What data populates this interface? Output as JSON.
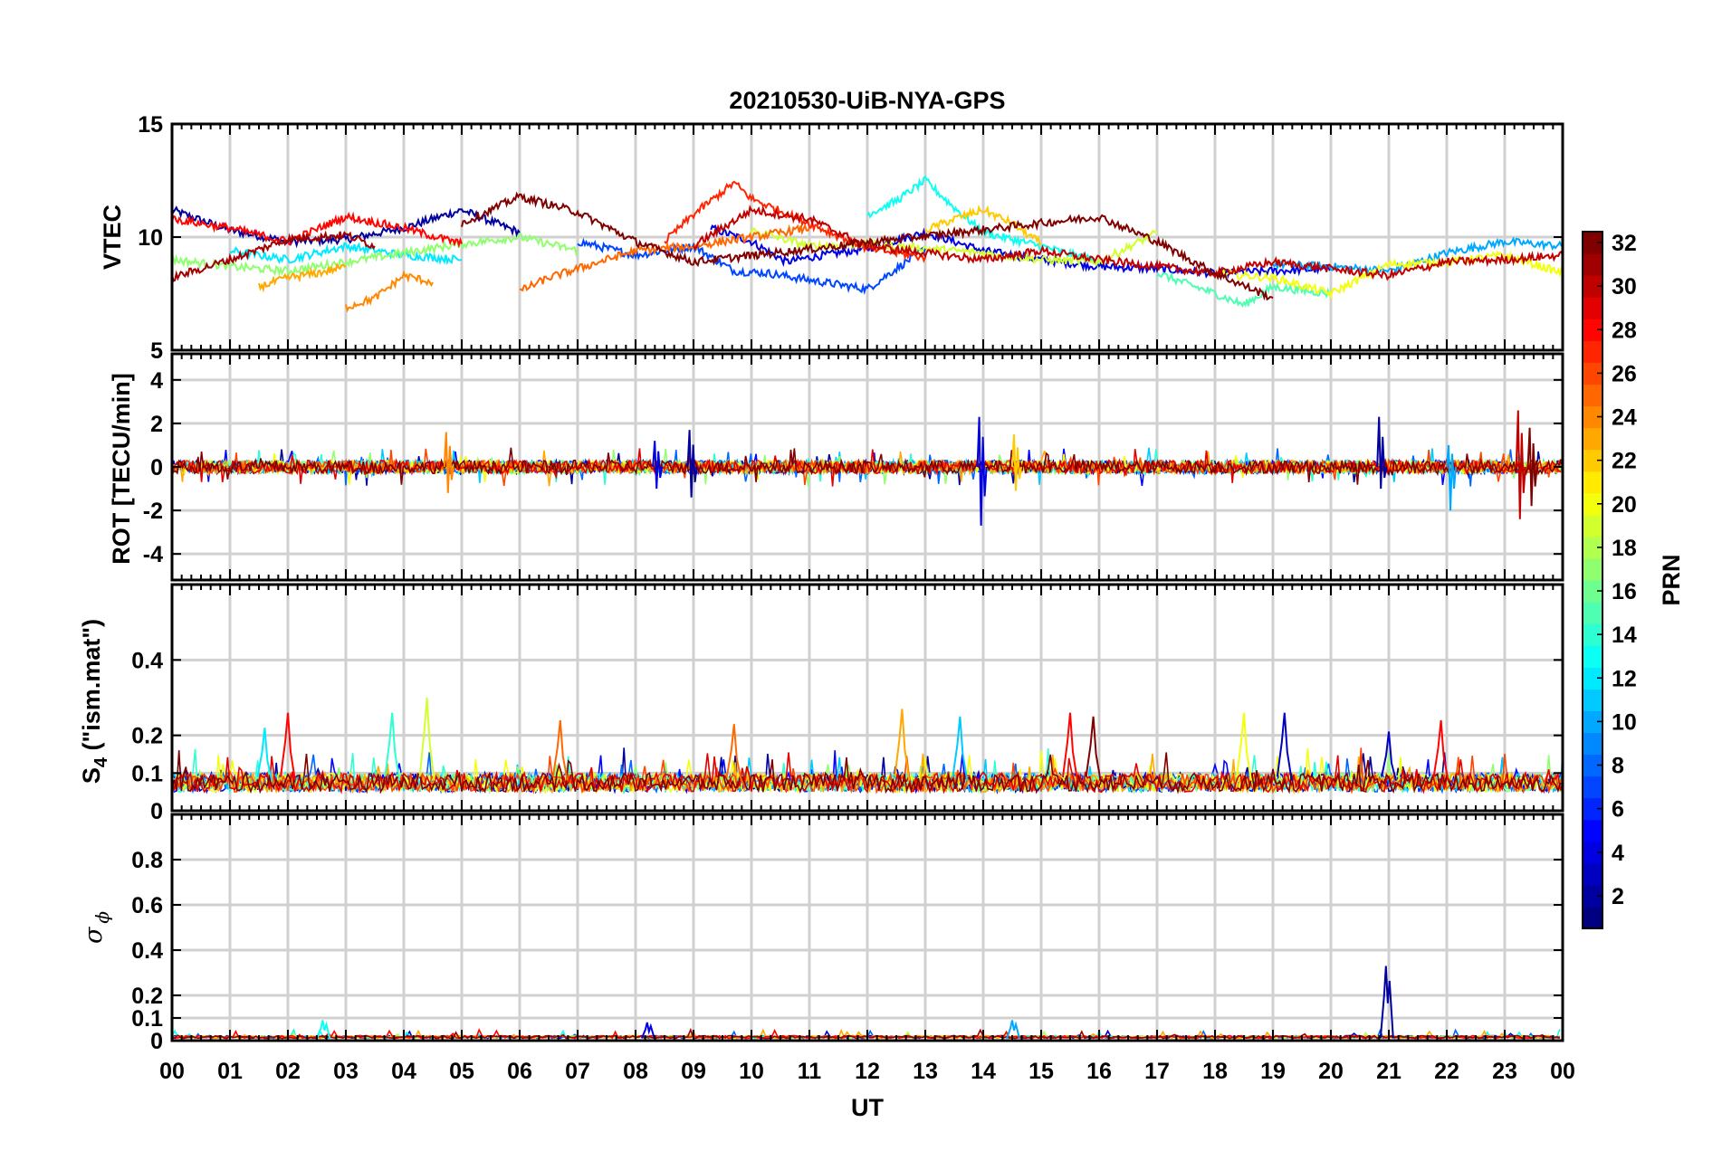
{
  "figure": {
    "title": "20210530-UiB-NYA-GPS",
    "xlabel": "UT",
    "x_ticks": [
      "00",
      "01",
      "02",
      "03",
      "04",
      "05",
      "06",
      "07",
      "08",
      "09",
      "10",
      "11",
      "12",
      "13",
      "14",
      "15",
      "16",
      "17",
      "18",
      "19",
      "20",
      "21",
      "22",
      "23",
      "00"
    ]
  },
  "colorbar": {
    "label": "PRN",
    "range": [
      1,
      32
    ],
    "ticks": [
      "2",
      "4",
      "6",
      "8",
      "10",
      "12",
      "14",
      "16",
      "18",
      "20",
      "22",
      "24",
      "26",
      "28",
      "30",
      "32"
    ],
    "colormap": "jet"
  },
  "chart_data": [
    {
      "type": "line",
      "name": "vtec",
      "title": "20210530-UiB-NYA-GPS",
      "ylabel": "VTEC",
      "xlim": [
        0,
        24
      ],
      "ylim": [
        5,
        15
      ],
      "y_ticks": [
        "5",
        "10",
        "15"
      ],
      "grid": true,
      "series": [
        {
          "prn": 2,
          "x": [
            0,
            1,
            2,
            3,
            4,
            5,
            6
          ],
          "y": [
            11.2,
            10.3,
            9.8,
            9.9,
            10.4,
            11.2,
            10.2
          ]
        },
        {
          "prn": 4,
          "x": [
            9.3,
            10,
            10.6,
            11,
            12,
            13,
            14,
            15,
            16,
            17,
            18,
            19,
            20
          ],
          "y": [
            10.4,
            9.8,
            8.9,
            9.1,
            9.5,
            10.2,
            9.4,
            9.0,
            8.7,
            8.6,
            8.4,
            8.5,
            8.6
          ]
        },
        {
          "prn": 7,
          "x": [
            7,
            8,
            9,
            9.7,
            10.3,
            11,
            12,
            13
          ],
          "y": [
            9.8,
            9.2,
            9.6,
            8.5,
            8.4,
            8.1,
            7.7,
            9.5
          ]
        },
        {
          "prn": 10,
          "x": [
            19,
            20,
            21,
            22,
            23,
            24
          ],
          "y": [
            8.8,
            8.7,
            8.5,
            9.3,
            9.8,
            9.6
          ]
        },
        {
          "prn": 12,
          "x": [
            1,
            2,
            3,
            4,
            5
          ],
          "y": [
            9.4,
            9.0,
            9.6,
            9.2,
            9.0
          ]
        },
        {
          "prn": 13,
          "x": [
            12,
            12.5,
            13,
            13.5,
            14,
            15,
            16
          ],
          "y": [
            11.0,
            11.6,
            12.5,
            11.3,
            10.2,
            9.6,
            8.9
          ]
        },
        {
          "prn": 15,
          "x": [
            17,
            18,
            18.5,
            19,
            20
          ],
          "y": [
            8.4,
            7.5,
            7.0,
            7.8,
            7.5
          ]
        },
        {
          "prn": 17,
          "x": [
            0,
            1,
            2,
            3,
            4,
            5,
            6,
            7
          ],
          "y": [
            9.0,
            8.7,
            8.5,
            8.9,
            9.3,
            9.7,
            10.0,
            9.4
          ]
        },
        {
          "prn": 19,
          "x": [
            10,
            11,
            12,
            13,
            14,
            15,
            16,
            17
          ],
          "y": [
            10.3,
            9.6,
            9.7,
            9.5,
            9.3,
            9.0,
            8.9,
            10.2
          ]
        },
        {
          "prn": 20,
          "x": [
            18,
            19,
            20,
            21,
            22,
            23,
            24
          ],
          "y": [
            8.4,
            8.2,
            7.5,
            8.8,
            8.9,
            9.2,
            8.4
          ]
        },
        {
          "prn": 22,
          "x": [
            13,
            13.5,
            14,
            14.5,
            15
          ],
          "y": [
            10.3,
            10.8,
            11.2,
            10.6,
            9.7
          ]
        },
        {
          "prn": 23,
          "x": [
            1.5,
            2,
            2.5,
            3
          ],
          "y": [
            7.8,
            8.2,
            8.4,
            8.7
          ]
        },
        {
          "prn": 24,
          "x": [
            3,
            3.5,
            4,
            4.5
          ],
          "y": [
            6.9,
            7.3,
            8.3,
            8.0
          ]
        },
        {
          "prn": 25,
          "x": [
            6,
            6.5,
            7,
            7.5,
            8,
            9,
            10,
            11
          ],
          "y": [
            7.6,
            8.2,
            8.6,
            9.0,
            9.4,
            9.6,
            10.0,
            10.4
          ]
        },
        {
          "prn": 27,
          "x": [
            8.5,
            9,
            9.7,
            10,
            11,
            12,
            13
          ],
          "y": [
            9.8,
            11.0,
            12.4,
            11.7,
            10.6,
            9.5,
            9.1
          ]
        },
        {
          "prn": 28,
          "x": [
            0,
            1,
            2,
            3,
            4,
            5
          ],
          "y": [
            10.8,
            10.4,
            9.8,
            10.9,
            10.4,
            9.7
          ]
        },
        {
          "prn": 30,
          "x": [
            9,
            10,
            11,
            12,
            13,
            14,
            15,
            16,
            17,
            18,
            19,
            20,
            21,
            22,
            23,
            24
          ],
          "y": [
            9.6,
            11.2,
            10.8,
            9.6,
            9.3,
            9.0,
            9.4,
            9.0,
            8.7,
            8.4,
            8.9,
            8.6,
            8.3,
            8.9,
            9.0,
            9.2
          ]
        },
        {
          "prn": 31,
          "x": [
            0,
            1,
            2,
            3,
            3.5
          ],
          "y": [
            8.2,
            9.0,
            9.9,
            10.1,
            9.6
          ]
        },
        {
          "prn": 32,
          "x": [
            5,
            6,
            7,
            8,
            9,
            16,
            17,
            18,
            19
          ],
          "y": [
            10.6,
            11.8,
            11.1,
            9.8,
            8.9,
            10.9,
            9.8,
            8.4,
            7.3
          ]
        }
      ]
    },
    {
      "type": "line",
      "name": "rot",
      "ylabel": "ROT [TECU/min]",
      "xlim": [
        0,
        24
      ],
      "ylim": [
        -5.2,
        5.2
      ],
      "y_ticks": [
        "-4",
        "-2",
        "0",
        "2",
        "4"
      ],
      "grid": true,
      "baseline": 0,
      "noise_amplitude": 0.3,
      "spikes": [
        {
          "x": 4.7,
          "min": -1.2,
          "max": 1.6,
          "prn": 24
        },
        {
          "x": 8.3,
          "min": -1.0,
          "max": 1.2,
          "prn": 4
        },
        {
          "x": 8.9,
          "min": -1.4,
          "max": 1.7,
          "prn": 2
        },
        {
          "x": 13.9,
          "min": -2.7,
          "max": 2.3,
          "prn": 4
        },
        {
          "x": 14.5,
          "min": -1.1,
          "max": 1.5,
          "prn": 22
        },
        {
          "x": 20.8,
          "min": -1.0,
          "max": 2.3,
          "prn": 2
        },
        {
          "x": 22.0,
          "min": -2.0,
          "max": 1.0,
          "prn": 10
        },
        {
          "x": 23.2,
          "min": -2.4,
          "max": 2.6,
          "prn": 30
        },
        {
          "x": 23.4,
          "min": -1.8,
          "max": 1.8,
          "prn": 32
        }
      ]
    },
    {
      "type": "line",
      "name": "s4",
      "ylabel": "S4 (\"ism.mat\")",
      "ylabel_main": "S",
      "ylabel_sub": "4",
      "ylabel_rest": " (\"ism.mat\")",
      "xlim": [
        0,
        24
      ],
      "ylim": [
        0,
        0.6
      ],
      "y_ticks": [
        "0",
        "0.1",
        "0.2",
        "0.4"
      ],
      "grid": true,
      "baseline": 0.07,
      "peaks": [
        {
          "x": 1.6,
          "y": 0.22,
          "prn": 12
        },
        {
          "x": 2.0,
          "y": 0.26,
          "prn": 28
        },
        {
          "x": 3.8,
          "y": 0.26,
          "prn": 14
        },
        {
          "x": 4.4,
          "y": 0.3,
          "prn": 19
        },
        {
          "x": 6.7,
          "y": 0.24,
          "prn": 25
        },
        {
          "x": 9.7,
          "y": 0.23,
          "prn": 25
        },
        {
          "x": 12.6,
          "y": 0.27,
          "prn": 23
        },
        {
          "x": 13.6,
          "y": 0.25,
          "prn": 11
        },
        {
          "x": 15.5,
          "y": 0.26,
          "prn": 28
        },
        {
          "x": 15.9,
          "y": 0.25,
          "prn": 32
        },
        {
          "x": 18.5,
          "y": 0.26,
          "prn": 20
        },
        {
          "x": 19.2,
          "y": 0.26,
          "prn": 3
        },
        {
          "x": 21.0,
          "y": 0.21,
          "prn": 3
        },
        {
          "x": 21.9,
          "y": 0.24,
          "prn": 28
        }
      ]
    },
    {
      "type": "line",
      "name": "sigma_phi",
      "ylabel": "σϕ",
      "ylabel_main": "σ",
      "ylabel_sub": "ϕ",
      "xlim": [
        0,
        24
      ],
      "ylim": [
        0,
        1
      ],
      "y_ticks": [
        "0",
        "0.1",
        "0.2",
        "0.4",
        "0.6",
        "0.8"
      ],
      "grid": true,
      "baseline": 0.01,
      "peaks": [
        {
          "x": 20.95,
          "y": 0.33,
          "prn": 2
        },
        {
          "x": 2.6,
          "y": 0.09,
          "prn": 13
        },
        {
          "x": 8.2,
          "y": 0.08,
          "prn": 4
        },
        {
          "x": 14.5,
          "y": 0.09,
          "prn": 10
        }
      ]
    }
  ]
}
